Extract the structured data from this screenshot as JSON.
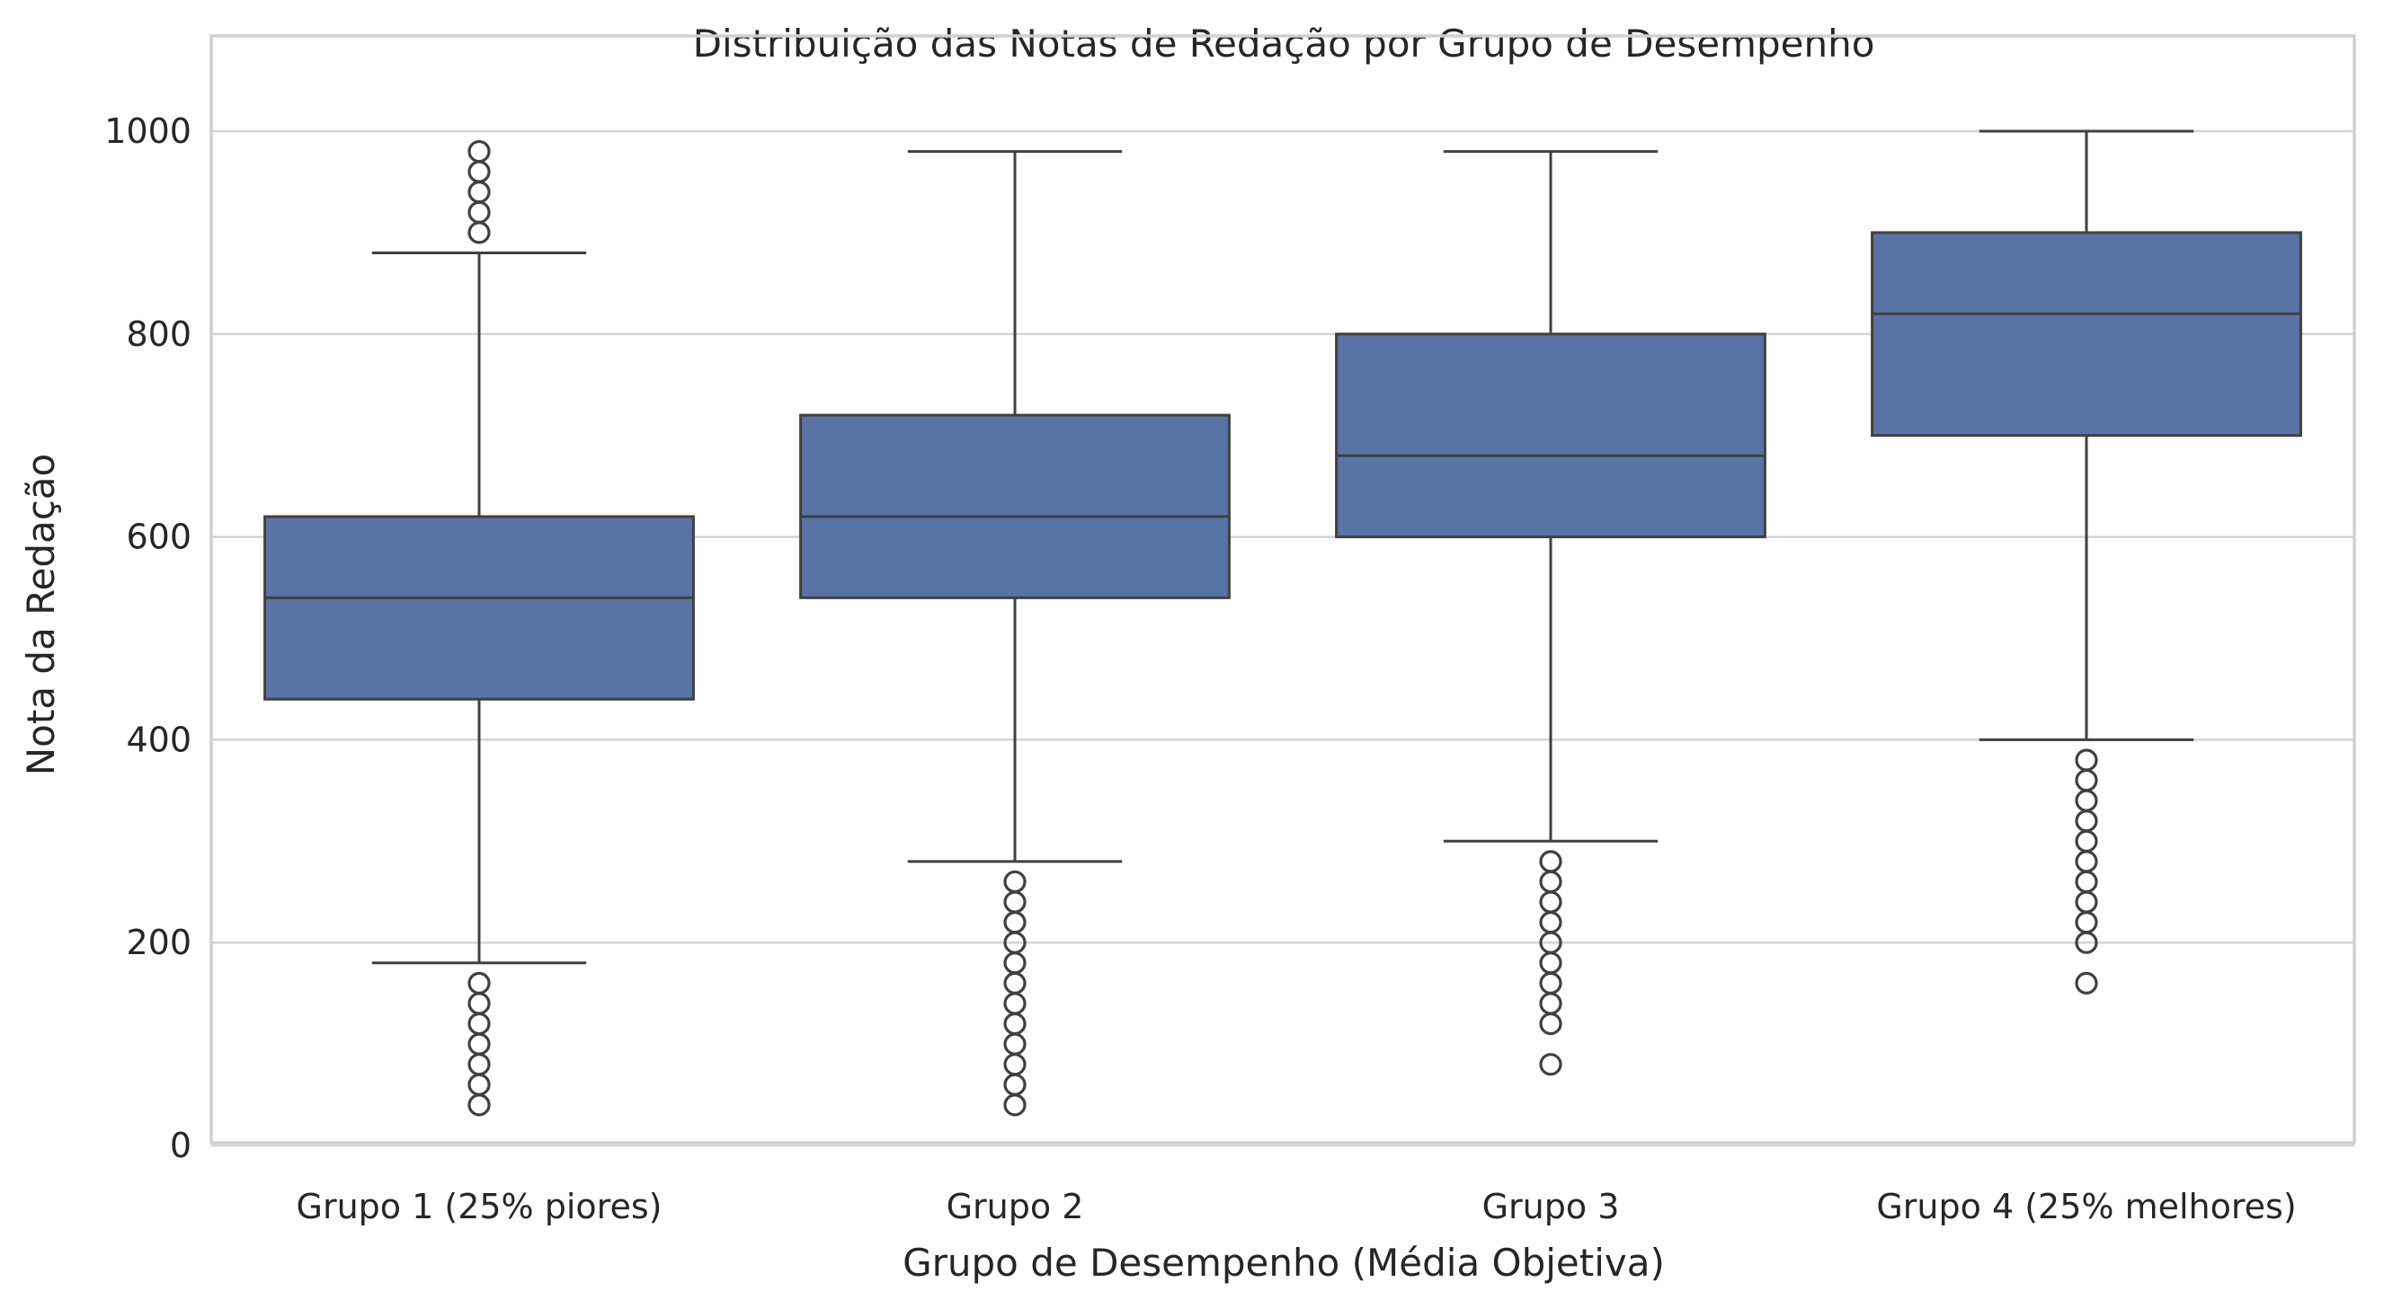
{
  "chart_data": {
    "type": "box",
    "title": "Distribuição das Notas de Redação por Grupo de Desempenho",
    "xlabel": "Grupo de Desempenho (Média Objetiva)",
    "ylabel": "Nota da Redação",
    "ylim": [
      0,
      1000
    ],
    "yticks": [
      0,
      200,
      400,
      600,
      800,
      1000
    ],
    "grid": true,
    "categories": [
      "Grupo 1 (25% piores)",
      "Grupo 2",
      "Grupo 3",
      "Grupo 4 (25% melhores)"
    ],
    "boxes": [
      {
        "name": "Grupo 1 (25% piores)",
        "whislo": 180,
        "q1": 440,
        "med": 540,
        "q3": 620,
        "whishi": 880,
        "fliers": [
          40,
          60,
          80,
          100,
          120,
          140,
          160,
          900,
          920,
          940,
          960,
          980
        ]
      },
      {
        "name": "Grupo 2",
        "whislo": 280,
        "q1": 540,
        "med": 620,
        "q3": 720,
        "whishi": 980,
        "fliers": [
          40,
          60,
          80,
          100,
          120,
          140,
          160,
          180,
          200,
          220,
          240,
          260
        ]
      },
      {
        "name": "Grupo 3",
        "whislo": 300,
        "q1": 600,
        "med": 680,
        "q3": 800,
        "whishi": 980,
        "fliers": [
          80,
          120,
          140,
          160,
          180,
          200,
          220,
          240,
          260,
          280
        ]
      },
      {
        "name": "Grupo 4 (25% melhores)",
        "whislo": 400,
        "q1": 700,
        "med": 820,
        "q3": 900,
        "whishi": 1000,
        "fliers": [
          160,
          200,
          220,
          240,
          260,
          280,
          300,
          320,
          340,
          360,
          380
        ]
      }
    ],
    "colors": {
      "box": "#5874a6",
      "line": "#404040",
      "grid": "#d4d4d4",
      "frame": "#d0d0d0"
    }
  }
}
